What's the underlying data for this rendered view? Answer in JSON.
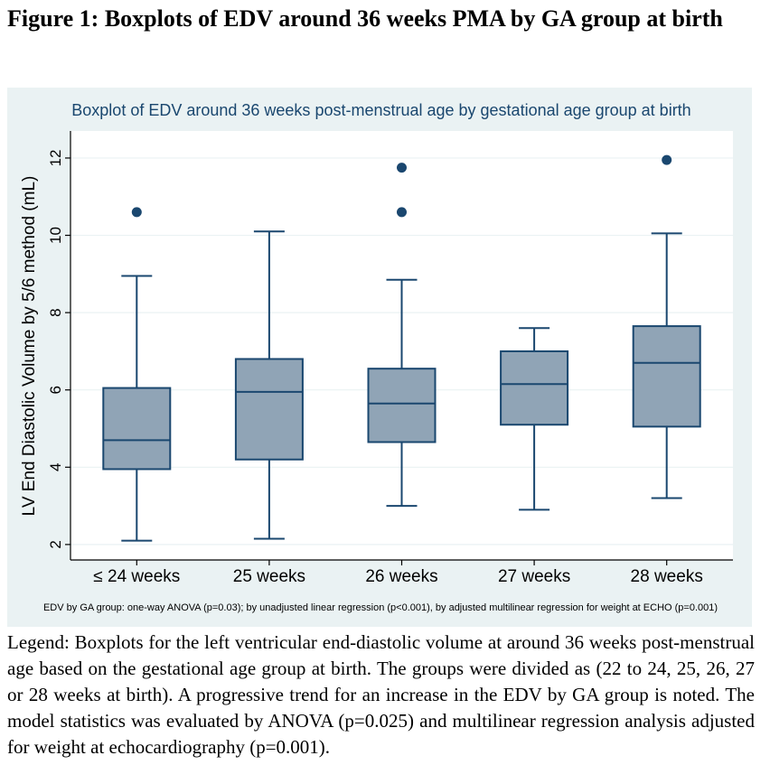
{
  "figure_title": "Figure 1: Boxplots of EDV around 36 weeks PMA by GA group at birth",
  "legend_text": "Legend: Boxplots for the left ventricular end-diastolic volume at around 36 weeks post-menstrual age based on the gestational age group at birth. The groups were divided as (22 to 24, 25, 26, 27 or 28 weeks at birth). A progressive trend for an increase in the EDV by GA group is noted. The model statistics was evaluated by ANOVA (p=0.025) and multilinear regression analysis adjusted for weight at echocardiography (p=0.001).",
  "chart_data": {
    "type": "boxplot",
    "title": "Boxplot of EDV around 36 weeks post-menstrual age by gestational age group at birth",
    "ylabel": "LV End Diastolic Volume by 5/6 method (mL)",
    "xlabel": "",
    "note": "EDV by GA group: one-way ANOVA (p=0.03); by unadjusted linear regression (p<0.001), by adjusted multilinear regression for weight at ECHO (p=0.001)",
    "ylim": [
      1.6,
      12.7
    ],
    "yticks": [
      2,
      4,
      6,
      8,
      10,
      12
    ],
    "grid": true,
    "categories": [
      "≤ 24 weeks",
      "25 weeks",
      "26 weeks",
      "27 weeks",
      "28 weeks"
    ],
    "boxes": [
      {
        "min": 2.1,
        "q1": 3.95,
        "median": 4.7,
        "q3": 6.05,
        "max": 8.95,
        "outliers": [
          10.6
        ]
      },
      {
        "min": 2.15,
        "q1": 4.2,
        "median": 5.95,
        "q3": 6.8,
        "max": 10.1,
        "outliers": []
      },
      {
        "min": 3.0,
        "q1": 4.65,
        "median": 5.65,
        "q3": 6.55,
        "max": 8.85,
        "outliers": [
          10.6,
          11.75
        ]
      },
      {
        "min": 2.9,
        "q1": 5.1,
        "median": 6.15,
        "q3": 7.0,
        "max": 7.6,
        "outliers": []
      },
      {
        "min": 3.2,
        "q1": 5.05,
        "median": 6.7,
        "q3": 7.65,
        "max": 10.05,
        "outliers": [
          11.95
        ]
      }
    ],
    "colors": {
      "box_fill": "#90a4b6",
      "box_stroke": "#1a476f",
      "outlier": "#1a476f",
      "grid": "#eaf2f3",
      "title": "#1a476f"
    }
  }
}
